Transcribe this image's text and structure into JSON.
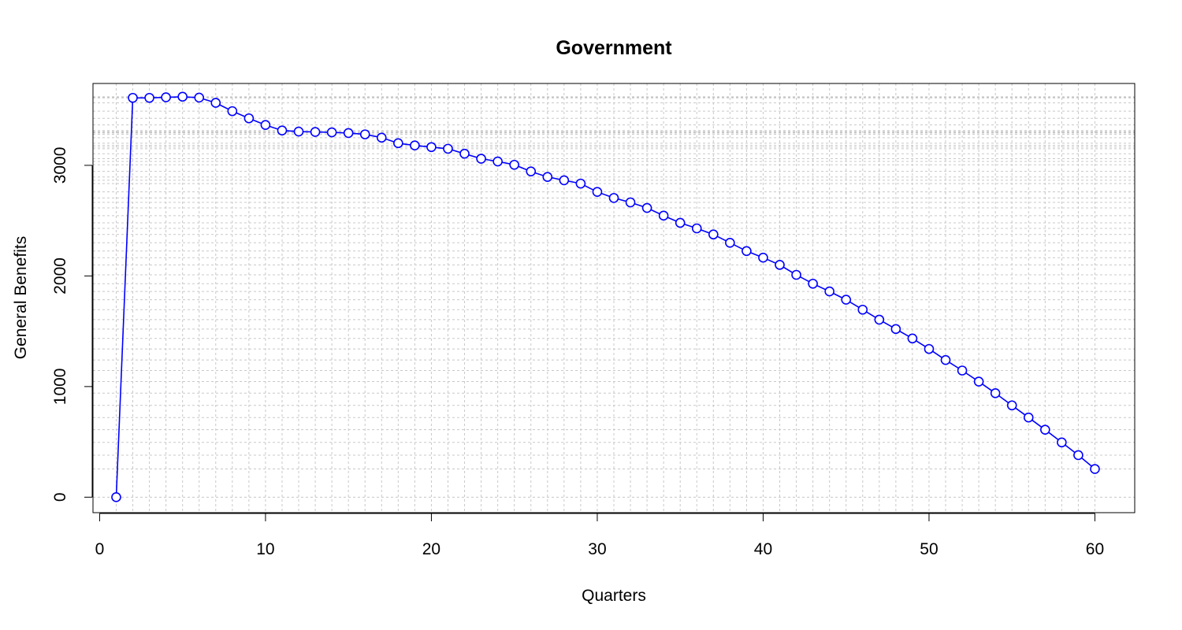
{
  "chart_data": {
    "type": "line",
    "title": "Government",
    "xlabel": "Quarters",
    "ylabel": "General Benefits",
    "xlim": [
      -0.4,
      62.4
    ],
    "ylim": [
      -140,
      3740
    ],
    "x_ticks": [
      0,
      10,
      20,
      30,
      40,
      50,
      60
    ],
    "y_ticks": [
      0,
      1000,
      2000,
      3000
    ],
    "grid": true,
    "series_color": "#0000ff",
    "grid_color": "#c8c8c8",
    "series": [
      {
        "x": [
          1,
          2,
          3,
          4,
          5,
          6,
          7,
          8,
          9,
          10,
          11,
          12,
          13,
          14,
          15,
          16,
          17,
          18,
          19,
          20,
          21,
          22,
          23,
          24,
          25,
          26,
          27,
          28,
          29,
          30,
          31,
          32,
          33,
          34,
          35,
          36,
          37,
          38,
          39,
          40,
          41,
          42,
          43,
          44,
          45,
          46,
          47,
          48,
          49,
          50,
          51,
          52,
          53,
          54,
          55,
          56,
          57,
          58,
          59,
          60
        ],
        "values": [
          0,
          3610,
          3610,
          3615,
          3620,
          3612,
          3565,
          3490,
          3425,
          3365,
          3315,
          3305,
          3302,
          3298,
          3292,
          3280,
          3250,
          3200,
          3180,
          3165,
          3150,
          3105,
          3060,
          3035,
          3005,
          2945,
          2895,
          2865,
          2835,
          2760,
          2705,
          2665,
          2615,
          2545,
          2480,
          2430,
          2375,
          2300,
          2225,
          2165,
          2100,
          2010,
          1930,
          1860,
          1785,
          1695,
          1605,
          1520,
          1435,
          1340,
          1240,
          1145,
          1045,
          940,
          830,
          720,
          610,
          495,
          380,
          255
        ]
      }
    ]
  }
}
